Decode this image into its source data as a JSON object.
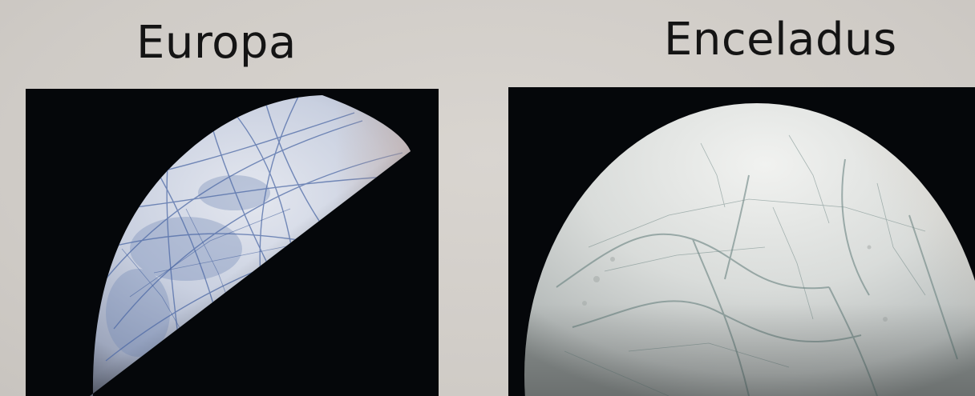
{
  "panels": [
    {
      "name": "Europa",
      "image": "europa-photo"
    },
    {
      "name": "Enceladus",
      "image": "enceladus-photo"
    }
  ],
  "colors": {
    "background": "#d3cfca",
    "space": "#05070a",
    "title": "#141414"
  }
}
